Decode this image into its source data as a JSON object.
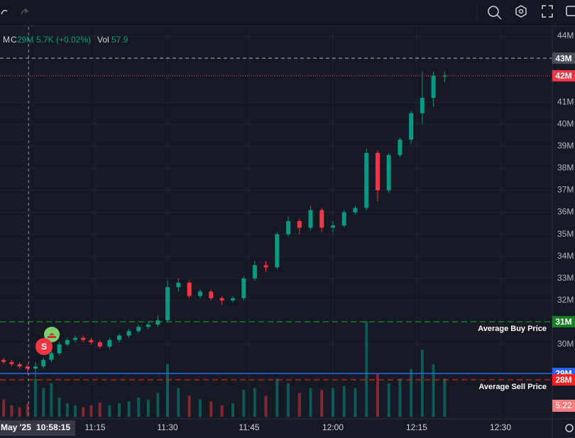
{
  "chart_data": {
    "type": "candlestick",
    "legend": {
      "symbol": "M",
      "close_key": "C",
      "close": "29M",
      "change": "5.7K (+0.02%)",
      "vol_key": "Vol",
      "vol": "57.9"
    },
    "x": [
      "10:52",
      "10:54",
      "10:56",
      "10:58",
      "11:00",
      "11:02",
      "11:04",
      "11:06",
      "11:08",
      "11:10",
      "11:12",
      "11:14",
      "11:16",
      "11:18",
      "11:20",
      "11:22",
      "11:24",
      "11:26",
      "11:28",
      "11:30",
      "11:32",
      "11:34",
      "11:36",
      "11:38",
      "11:40",
      "11:42",
      "11:44",
      "11:46",
      "11:48",
      "11:50",
      "11:52",
      "11:54",
      "11:56",
      "11:58",
      "12:00",
      "12:02",
      "12:04",
      "12:06",
      "12:08",
      "12:10",
      "12:12",
      "12:14",
      "12:16",
      "12:18",
      "12:20"
    ],
    "open": [
      29.3,
      29.2,
      29.1,
      29.0,
      28.9,
      29.0,
      29.3,
      29.6,
      30.0,
      30.2,
      30.3,
      30.2,
      30.1,
      29.9,
      30.2,
      30.4,
      30.6,
      30.8,
      30.9,
      31.1,
      32.6,
      32.8,
      32.2,
      32.4,
      32.1,
      32.0,
      32.1,
      33.0,
      33.6,
      33.5,
      35.0,
      35.6,
      35.3,
      36.1,
      35.3,
      35.4,
      36.0,
      36.2,
      38.7,
      37.0,
      38.6,
      39.3,
      40.5,
      41.2,
      42.2
    ],
    "high": [
      29.4,
      29.3,
      29.2,
      29.1,
      29.2,
      29.4,
      29.7,
      30.1,
      30.3,
      30.4,
      30.4,
      30.3,
      30.2,
      30.3,
      30.5,
      30.7,
      30.9,
      31.0,
      31.3,
      32.9,
      33.0,
      32.9,
      32.5,
      32.5,
      32.2,
      32.2,
      33.1,
      33.8,
      33.8,
      35.1,
      35.8,
      35.7,
      36.3,
      36.2,
      35.6,
      36.1,
      36.3,
      38.9,
      38.8,
      38.7,
      39.4,
      40.6,
      42.4,
      42.4,
      42.4
    ],
    "low": [
      29.1,
      29.0,
      28.9,
      28.7,
      28.5,
      28.9,
      29.2,
      29.5,
      29.9,
      30.1,
      30.1,
      30.0,
      29.8,
      29.8,
      30.1,
      30.3,
      30.5,
      30.7,
      30.8,
      31.0,
      32.4,
      32.1,
      32.1,
      32.0,
      31.8,
      31.9,
      32.0,
      32.9,
      33.3,
      33.4,
      34.9,
      35.0,
      35.2,
      35.1,
      35.1,
      35.3,
      35.9,
      36.1,
      36.5,
      36.9,
      38.5,
      39.1,
      40.0,
      40.8,
      41.9
    ],
    "close": [
      29.2,
      29.1,
      29.0,
      28.9,
      29.0,
      29.3,
      29.6,
      30.0,
      30.2,
      30.3,
      30.2,
      30.1,
      29.9,
      30.2,
      30.4,
      30.6,
      30.8,
      30.9,
      31.1,
      32.6,
      32.8,
      32.2,
      32.4,
      32.1,
      32.0,
      32.1,
      33.0,
      33.6,
      33.5,
      35.0,
      35.6,
      35.3,
      36.1,
      35.3,
      35.4,
      36.0,
      36.2,
      38.7,
      37.0,
      38.6,
      39.3,
      40.5,
      41.2,
      42.2,
      42.2
    ],
    "volume": [
      18,
      12,
      10,
      14,
      40,
      30,
      35,
      20,
      14,
      12,
      10,
      12,
      15,
      12,
      14,
      16,
      20,
      18,
      25,
      55,
      30,
      22,
      18,
      16,
      12,
      14,
      28,
      30,
      22,
      40,
      35,
      25,
      30,
      28,
      30,
      32,
      30,
      100,
      45,
      35,
      40,
      50,
      70,
      55,
      40
    ],
    "volume_lim": [
      0,
      100
    ],
    "volume_label": "5.22",
    "ylim": [
      26.65,
      44.42
    ],
    "yticks": [
      {
        "value": 30,
        "label": "30M"
      },
      {
        "value": 32,
        "label": "32M"
      },
      {
        "value": 33,
        "label": "33M"
      },
      {
        "value": 34,
        "label": "34M"
      },
      {
        "value": 35,
        "label": "35M"
      },
      {
        "value": 36,
        "label": "36M"
      },
      {
        "value": 37,
        "label": "37M"
      },
      {
        "value": 38,
        "label": "38M"
      },
      {
        "value": 39,
        "label": "39M"
      },
      {
        "value": 40,
        "label": "40M"
      },
      {
        "value": 41,
        "label": "41M"
      },
      {
        "value": 44,
        "label": "44M"
      }
    ],
    "xticks": [
      "11:15",
      "11:30",
      "11:45",
      "12:00",
      "12:15",
      "12:30"
    ],
    "up_color": "#089981",
    "down_color": "#f23645",
    "grid": true,
    "price_lines": [
      {
        "value": 43.0,
        "label": "43M",
        "color": "#9598a1",
        "box": "#4a4d57",
        "dash": "5 4"
      },
      {
        "value": 42.2,
        "label": "42M",
        "color": "#f23645",
        "box": "#f23645",
        "dash": "1 2"
      },
      {
        "value": 31.03,
        "label": "31M",
        "color": "#1f9d2a",
        "box": "#1a7f26",
        "dash": "8 5",
        "text": "Average Buy Price"
      },
      {
        "value": 28.68,
        "label": "29M",
        "color": "#2962ff",
        "box": "#2962ff",
        "dash": "none"
      },
      {
        "value": 28.39,
        "label": "28M",
        "color": "#ff1f1f",
        "box": "#ff1f1f",
        "dash": "8 5",
        "text": "Average Sell Price"
      }
    ],
    "crosshair": {
      "time": "10:58:15",
      "date": "May '25"
    },
    "markers": [
      {
        "label": "S"
      }
    ]
  }
}
